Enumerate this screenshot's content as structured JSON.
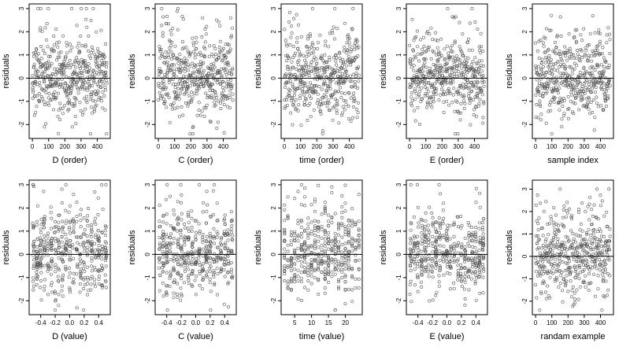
{
  "chart_data": [
    {
      "type": "scatter",
      "xlabel": "D (order)",
      "ylabel": "residuals",
      "xlim": [
        -20,
        480
      ],
      "ylim": [
        -2.6,
        3.2
      ],
      "xticks": [
        0,
        100,
        200,
        300,
        400
      ],
      "xtick_labels": [
        "0",
        "100",
        "200",
        "300",
        "400"
      ],
      "yticks": [
        -2,
        -1,
        0,
        1,
        2,
        3
      ],
      "ytick_labels": [
        "-2",
        "-1",
        "0",
        "1",
        "2",
        "3"
      ],
      "hline": 0,
      "grid": false,
      "seed": 11,
      "pattern": "index",
      "x": [],
      "y": []
    },
    {
      "type": "scatter",
      "xlabel": "C (order)",
      "ylabel": "residuals",
      "xlim": [
        -20,
        480
      ],
      "ylim": [
        -2.6,
        3.2
      ],
      "xticks": [
        0,
        100,
        200,
        300,
        400
      ],
      "xtick_labels": [
        "0",
        "100",
        "200",
        "300",
        "400"
      ],
      "yticks": [
        -2,
        -1,
        0,
        1,
        2,
        3
      ],
      "ytick_labels": [
        "-2",
        "-1",
        "0",
        "1",
        "2",
        "3"
      ],
      "hline": 0,
      "grid": false,
      "seed": 23,
      "pattern": "index",
      "x": [],
      "y": []
    },
    {
      "type": "scatter",
      "xlabel": "time (order)",
      "ylabel": "residuals",
      "xlim": [
        -20,
        480
      ],
      "ylim": [
        -2.6,
        3.2
      ],
      "xticks": [
        0,
        100,
        200,
        300,
        400
      ],
      "xtick_labels": [
        "0",
        "100",
        "200",
        "300",
        "400"
      ],
      "yticks": [
        -2,
        -1,
        0,
        1,
        2,
        3
      ],
      "ytick_labels": [
        "-2",
        "-1",
        "0",
        "1",
        "2",
        "3"
      ],
      "hline": 0,
      "grid": false,
      "seed": 37,
      "pattern": "index",
      "x": [],
      "y": []
    },
    {
      "type": "scatter",
      "xlabel": "E (order)",
      "ylabel": "residuals",
      "xlim": [
        -20,
        480
      ],
      "ylim": [
        -2.6,
        3.2
      ],
      "xticks": [
        0,
        100,
        200,
        300,
        400
      ],
      "xtick_labels": [
        "0",
        "100",
        "200",
        "300",
        "400"
      ],
      "yticks": [
        -2,
        -1,
        0,
        1,
        2,
        3
      ],
      "ytick_labels": [
        "-2",
        "-1",
        "0",
        "1",
        "2",
        "3"
      ],
      "hline": 0,
      "grid": false,
      "seed": 41,
      "pattern": "index",
      "x": [],
      "y": []
    },
    {
      "type": "scatter",
      "xlabel": "sample index",
      "ylabel": "residuals",
      "xlim": [
        -20,
        480
      ],
      "ylim": [
        -2.6,
        3.2
      ],
      "xticks": [
        0,
        100,
        200,
        300,
        400
      ],
      "xtick_labels": [
        "0",
        "100",
        "200",
        "300",
        "400"
      ],
      "yticks": [
        -2,
        -1,
        0,
        1,
        2,
        3
      ],
      "ytick_labels": [
        "-2",
        "-1",
        "0",
        "1",
        "2",
        "3"
      ],
      "hline": 0,
      "grid": false,
      "seed": 53,
      "pattern": "index",
      "x": [],
      "y": []
    },
    {
      "type": "scatter",
      "xlabel": "D (value)",
      "ylabel": "residuals",
      "xlim": [
        -0.56,
        0.56
      ],
      "ylim": [
        -2.6,
        3.2
      ],
      "xticks": [
        -0.4,
        -0.2,
        0,
        0.2,
        0.4
      ],
      "xtick_labels": [
        "-0.4",
        "-0.2",
        "0.0",
        "0.2",
        "0.4"
      ],
      "yticks": [
        -2,
        -1,
        0,
        1,
        2,
        3
      ],
      "ytick_labels": [
        "-2",
        "-1",
        "0",
        "1",
        "2",
        "3"
      ],
      "hline": 0,
      "grid": false,
      "seed": 67,
      "pattern": "value",
      "x": [],
      "y": []
    },
    {
      "type": "scatter",
      "xlabel": "C (value)",
      "ylabel": "residuals",
      "xlim": [
        -0.56,
        0.56
      ],
      "ylim": [
        -2.6,
        3.2
      ],
      "xticks": [
        -0.4,
        -0.2,
        0,
        0.2,
        0.4
      ],
      "xtick_labels": [
        "-0.4",
        "-0.2",
        "0.0",
        "0.2",
        "0.4"
      ],
      "yticks": [
        -2,
        -1,
        0,
        1,
        2,
        3
      ],
      "ytick_labels": [
        "-2",
        "-1",
        "0",
        "1",
        "2",
        "3"
      ],
      "hline": 0,
      "grid": false,
      "seed": 71,
      "pattern": "value",
      "x": [],
      "y": []
    },
    {
      "type": "scatter",
      "xlabel": "time (value)",
      "ylabel": "residuals",
      "xlim": [
        1,
        25
      ],
      "ylim": [
        -2.6,
        3.2
      ],
      "xticks": [
        5,
        10,
        15,
        20
      ],
      "xtick_labels": [
        "5",
        "10",
        "15",
        "20"
      ],
      "yticks": [
        -2,
        -1,
        0,
        1,
        2,
        3
      ],
      "ytick_labels": [
        "-2",
        "-1",
        "0",
        "1",
        "2",
        "3"
      ],
      "hline": 0,
      "grid": false,
      "seed": 83,
      "pattern": "time",
      "x": [],
      "y": []
    },
    {
      "type": "scatter",
      "xlabel": "E (value)",
      "ylabel": "residuals",
      "xlim": [
        -0.56,
        0.56
      ],
      "ylim": [
        -2.6,
        3.2
      ],
      "xticks": [
        -0.4,
        -0.2,
        0,
        0.2,
        0.4
      ],
      "xtick_labels": [
        "-0.4",
        "-0.2",
        "0.0",
        "0.2",
        "0.4"
      ],
      "yticks": [
        -2,
        -1,
        0,
        1,
        2,
        3
      ],
      "ytick_labels": [
        "-2",
        "-1",
        "0",
        "1",
        "2",
        "3"
      ],
      "hline": 0,
      "grid": false,
      "seed": 97,
      "pattern": "value",
      "x": [],
      "y": []
    },
    {
      "type": "scatter",
      "xlabel": "randam example",
      "ylabel": "residuals",
      "xlim": [
        -20,
        480
      ],
      "ylim": [
        -2.6,
        3.4
      ],
      "xticks": [
        0,
        100,
        200,
        300,
        400
      ],
      "xtick_labels": [
        "0",
        "100",
        "200",
        "300",
        "400"
      ],
      "yticks": [
        -2,
        -1,
        0,
        1,
        2,
        3
      ],
      "ytick_labels": [
        "-2",
        "-1",
        "0",
        "1",
        "2",
        "3"
      ],
      "hline": 0,
      "grid": false,
      "seed": 101,
      "pattern": "random",
      "x": [],
      "y": []
    }
  ],
  "colors": {
    "point": "#555555",
    "frame": "#000000",
    "hline": "#000000"
  }
}
